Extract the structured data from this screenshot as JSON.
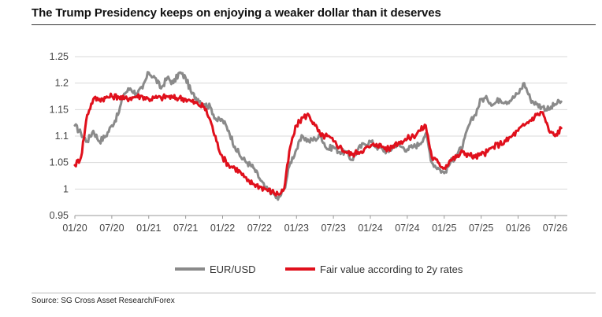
{
  "header": {
    "title": "The Trump Presidency keeps on enjoying a weaker dollar than it deserves"
  },
  "footer": {
    "source": "Source: SG Cross Asset Research/Forex"
  },
  "chart_data": {
    "type": "line",
    "title": "The Trump Presidency keeps on enjoying a weaker dollar than it deserves",
    "xlabel": "",
    "ylabel": "",
    "xlim": [
      0,
      80
    ],
    "ylim": [
      0.95,
      1.25
    ],
    "x_unit_note": "months since 01/20",
    "y_ticks": [
      "1.25",
      "1.2",
      "1.15",
      "1.1",
      "1.05",
      "1",
      "0.95"
    ],
    "y_tick_values": [
      1.25,
      1.2,
      1.15,
      1.1,
      1.05,
      1.0,
      0.95
    ],
    "x_ticks": [
      "01/20",
      "07/20",
      "01/21",
      "07/21",
      "01/22",
      "07/22",
      "01/23",
      "07/23",
      "01/24",
      "07/24",
      "01/25",
      "07/25",
      "01/26",
      "07/26"
    ],
    "x_tick_values": [
      0,
      6,
      12,
      18,
      24,
      30,
      36,
      42,
      48,
      54,
      60,
      66,
      72,
      78
    ],
    "grid": "horizontal",
    "legend_position": "bottom",
    "colors": {
      "eurusd": "#8a8a8a",
      "fair": "#e0101c"
    },
    "series": [
      {
        "name": "EUR/USD",
        "color": "#8a8a8a",
        "x": [
          0,
          1,
          2,
          3,
          4,
          5,
          6,
          7,
          8,
          9,
          10,
          11,
          12,
          13,
          14,
          15,
          16,
          17,
          18,
          19,
          20,
          21,
          22,
          23,
          24,
          25,
          26,
          27,
          28,
          29,
          30,
          31,
          32,
          33,
          34,
          35,
          36,
          37,
          38,
          39,
          40,
          41,
          42,
          43,
          44,
          45,
          46,
          47,
          48,
          49,
          50,
          51,
          52,
          53,
          54,
          55,
          56,
          57,
          58,
          59,
          60,
          61,
          62,
          63,
          64,
          65,
          66,
          67,
          68,
          69,
          70,
          71,
          72,
          73,
          74,
          75,
          76,
          77,
          78,
          79
        ],
        "values": [
          1.12,
          1.105,
          1.09,
          1.11,
          1.09,
          1.1,
          1.12,
          1.14,
          1.18,
          1.19,
          1.18,
          1.19,
          1.22,
          1.21,
          1.19,
          1.21,
          1.2,
          1.22,
          1.21,
          1.18,
          1.17,
          1.16,
          1.155,
          1.13,
          1.13,
          1.11,
          1.08,
          1.06,
          1.05,
          1.04,
          1.02,
          1.0,
          0.995,
          0.98,
          1.0,
          1.05,
          1.075,
          1.1,
          1.09,
          1.095,
          1.1,
          1.075,
          1.08,
          1.07,
          1.07,
          1.055,
          1.075,
          1.085,
          1.09,
          1.08,
          1.075,
          1.07,
          1.085,
          1.08,
          1.075,
          1.08,
          1.085,
          1.105,
          1.05,
          1.04,
          1.03,
          1.05,
          1.065,
          1.08,
          1.12,
          1.14,
          1.17,
          1.17,
          1.16,
          1.17,
          1.165,
          1.17,
          1.18,
          1.2,
          1.17,
          1.16,
          1.155,
          1.15,
          1.16,
          1.165
        ]
      },
      {
        "name": "Fair value according to 2y rates",
        "color": "#e0101c",
        "x": [
          0,
          1,
          2,
          3,
          4,
          5,
          6,
          7,
          8,
          9,
          10,
          11,
          12,
          13,
          14,
          15,
          16,
          17,
          18,
          19,
          20,
          21,
          22,
          23,
          24,
          25,
          26,
          27,
          28,
          29,
          30,
          31,
          32,
          33,
          34,
          35,
          36,
          37,
          38,
          39,
          40,
          41,
          42,
          43,
          44,
          45,
          46,
          47,
          48,
          49,
          50,
          51,
          52,
          53,
          54,
          55,
          56,
          57,
          58,
          59,
          60,
          61,
          62,
          63,
          64,
          65,
          66,
          67,
          68,
          69,
          70,
          71,
          72,
          73,
          74,
          75,
          76,
          77,
          78,
          79
        ],
        "values": [
          1.045,
          1.06,
          1.14,
          1.17,
          1.17,
          1.172,
          1.175,
          1.175,
          1.17,
          1.172,
          1.175,
          1.175,
          1.17,
          1.172,
          1.172,
          1.175,
          1.172,
          1.172,
          1.17,
          1.165,
          1.16,
          1.155,
          1.13,
          1.09,
          1.06,
          1.045,
          1.04,
          1.03,
          1.015,
          1.01,
          1.005,
          1.0,
          0.995,
          0.99,
          1.0,
          1.08,
          1.12,
          1.135,
          1.14,
          1.12,
          1.1,
          1.1,
          1.09,
          1.08,
          1.07,
          1.065,
          1.07,
          1.075,
          1.08,
          1.085,
          1.08,
          1.075,
          1.085,
          1.09,
          1.095,
          1.1,
          1.11,
          1.12,
          1.06,
          1.05,
          1.04,
          1.055,
          1.06,
          1.07,
          1.065,
          1.06,
          1.065,
          1.07,
          1.08,
          1.085,
          1.09,
          1.1,
          1.11,
          1.12,
          1.13,
          1.14,
          1.145,
          1.11,
          1.1,
          1.115
        ]
      }
    ]
  }
}
